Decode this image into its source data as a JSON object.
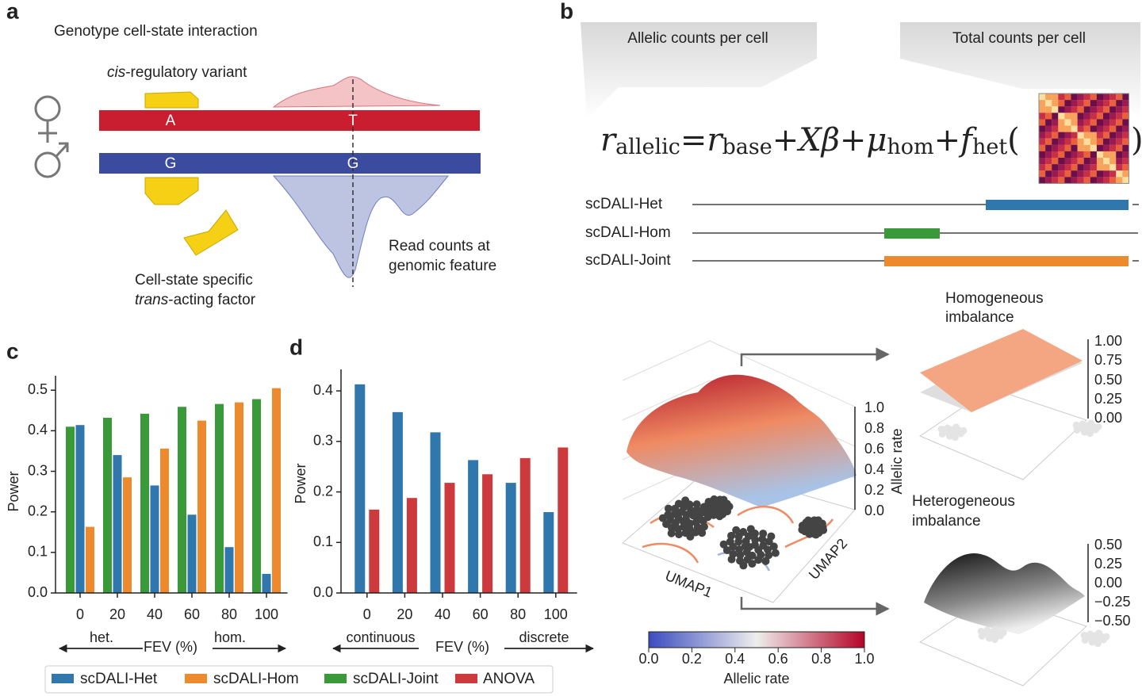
{
  "panel_a": {
    "label": "a",
    "title": "Genotype cell-state interaction",
    "variant_italic": "cis",
    "variant_rest": "-regulatory variant",
    "allele_top_left": "A",
    "allele_top_right": "T",
    "allele_bottom_left": "G",
    "allele_bottom_right": "G",
    "reads": [
      "Read counts at",
      "genomic feature"
    ],
    "factor_line1": "Cell-state specific",
    "factor_italic": "trans",
    "factor_rest": "-acting factor"
  },
  "panel_b": {
    "label": "b",
    "header_left": "Allelic counts per cell",
    "header_right": "Total counts per cell",
    "formula": [
      "r",
      "allelic",
      "=",
      "r",
      "base",
      "+",
      "Xβ",
      "+",
      "μ",
      "hom",
      "+",
      "f",
      "het",
      "(",
      ")"
    ],
    "models": [
      "scDALI-Het",
      "scDALI-Hom",
      "scDALI-Joint"
    ],
    "homogeneous": [
      "Homogeneous",
      "imbalance"
    ],
    "heterogeneous": [
      "Heterogeneous",
      "imbalance"
    ],
    "surface_ticks": [
      "1.0",
      "0.8",
      "0.6",
      "0.4",
      "0.2",
      "0.0"
    ],
    "surface_zlabel": "Allelic rate",
    "xaxis": "UMAP1",
    "yaxis": "UMAP2",
    "hom_ticks": [
      "1.00",
      "0.75",
      "0.50",
      "0.25",
      "0.00"
    ],
    "het_ticks": [
      "0.50",
      "0.25",
      "0.00",
      "−0.25",
      "−0.50"
    ],
    "colorbar_ticks": [
      "0.0",
      "0.2",
      "0.4",
      "0.6",
      "0.8",
      "1.0"
    ],
    "colorbar_label": "Allelic rate"
  },
  "chart_data": [
    {
      "type": "bar",
      "panel_label": "c",
      "ylabel": "Power",
      "xlabel": "FEV (%)",
      "annotations": [
        "het.",
        "hom."
      ],
      "categories": [
        "0",
        "20",
        "40",
        "60",
        "80",
        "100"
      ],
      "series": [
        {
          "name": "scDALI-Joint",
          "color": "#3a9a3a",
          "values": [
            0.41,
            0.432,
            0.442,
            0.459,
            0.466,
            0.478
          ]
        },
        {
          "name": "scDALI-Het",
          "color": "#2f77ad",
          "values": [
            0.414,
            0.34,
            0.265,
            0.193,
            0.113,
            0.047
          ]
        },
        {
          "name": "scDALI-Hom",
          "color": "#ec8a2d",
          "values": [
            0.163,
            0.285,
            0.356,
            0.425,
            0.47,
            0.505
          ]
        }
      ],
      "ylim": [
        0,
        0.52
      ],
      "yticks": [
        {
          "value": 0,
          "label": "0.0"
        },
        0.1,
        0.2,
        0.3,
        0.4,
        0.5
      ]
    },
    {
      "type": "bar",
      "panel_label": "d",
      "ylabel": "Power",
      "xlabel": "FEV (%)",
      "annotations": [
        "continuous",
        "discrete"
      ],
      "categories": [
        "0",
        "20",
        "40",
        "60",
        "80",
        "100"
      ],
      "series": [
        {
          "name": "scDALI-Het",
          "color": "#2f77ad",
          "values": [
            0.413,
            0.358,
            0.318,
            0.263,
            0.218,
            0.16
          ]
        },
        {
          "name": "ANOVA",
          "color": "#cc3a3e",
          "values": [
            0.165,
            0.188,
            0.218,
            0.235,
            0.267,
            0.288
          ]
        }
      ],
      "ylim": [
        0,
        0.43
      ],
      "yticks": [
        {
          "value": 0,
          "label": "0.0"
        },
        0.1,
        0.2,
        0.3,
        0.4
      ]
    }
  ]
}
